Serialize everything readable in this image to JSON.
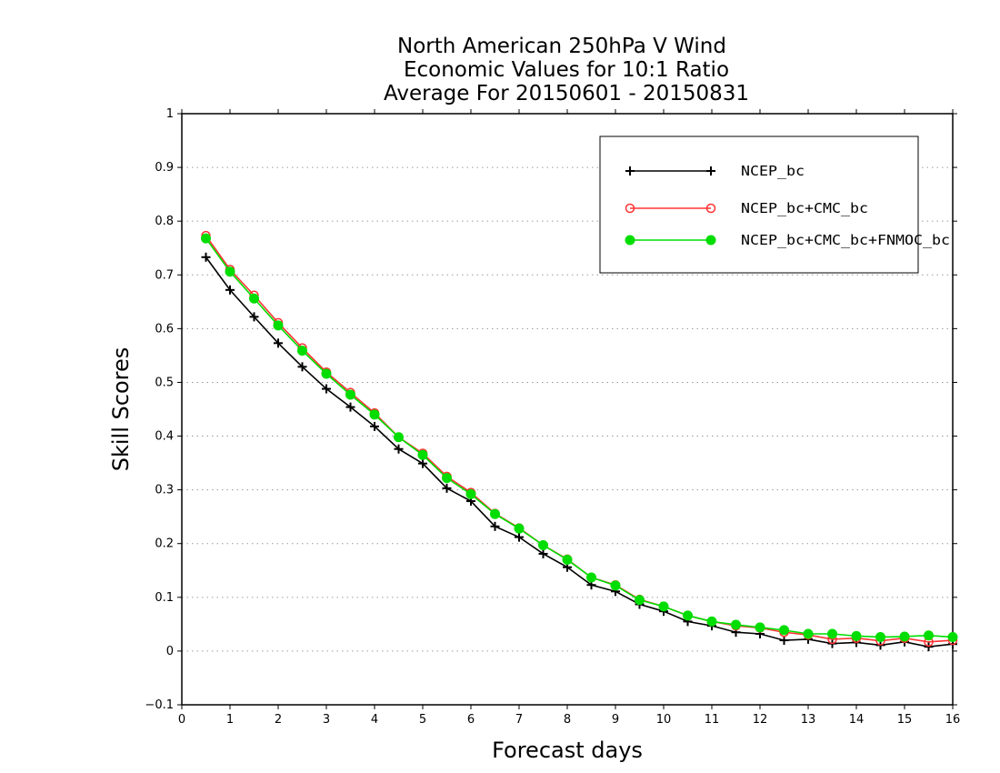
{
  "chart_data": {
    "type": "line",
    "title_lines": [
      "North American 250hPa V Wind",
      "Economic Values for 10:1 Ratio",
      "Average For 20150601 - 20150831"
    ],
    "xlabel": "Forecast days",
    "ylabel": "Skill Scores",
    "xlim": [
      0,
      16
    ],
    "ylim": [
      -0.1,
      1
    ],
    "xticks": [
      "0",
      "1",
      "2",
      "3",
      "4",
      "5",
      "6",
      "7",
      "8",
      "9",
      "10",
      "11",
      "12",
      "13",
      "14",
      "15",
      "16"
    ],
    "yticks": [
      "−0.1",
      "0",
      "0.1",
      "0.2",
      "0.3",
      "0.4",
      "0.5",
      "0.6",
      "0.7",
      "0.8",
      "0.9",
      "1"
    ],
    "grid": "horizontal dotted",
    "legend_position": "top-right",
    "x": [
      0.5,
      1,
      1.5,
      2,
      2.5,
      3,
      3.5,
      4,
      4.5,
      5,
      5.5,
      6,
      6.5,
      7,
      7.5,
      8,
      8.5,
      9,
      9.5,
      10,
      10.5,
      11,
      11.5,
      12,
      12.5,
      13,
      13.5,
      14,
      14.5,
      15,
      15.5,
      16
    ],
    "series": [
      {
        "name": "NCEP_bc",
        "color": "#000000",
        "marker": "plus",
        "values": [
          0.733,
          0.672,
          0.622,
          0.573,
          0.529,
          0.488,
          0.454,
          0.418,
          0.376,
          0.349,
          0.303,
          0.279,
          0.232,
          0.212,
          0.181,
          0.156,
          0.123,
          0.111,
          0.087,
          0.074,
          0.055,
          0.047,
          0.035,
          0.032,
          0.02,
          0.022,
          0.014,
          0.016,
          0.011,
          0.017,
          0.008,
          0.013
        ]
      },
      {
        "name": "NCEP_bc+CMC_bc",
        "color": "#ff3333",
        "marker": "open-circle",
        "values": [
          0.773,
          0.71,
          0.662,
          0.611,
          0.564,
          0.519,
          0.481,
          0.443,
          0.398,
          0.368,
          0.325,
          0.295,
          0.256,
          0.229,
          0.197,
          0.171,
          0.137,
          0.123,
          0.096,
          0.083,
          0.066,
          0.055,
          0.047,
          0.043,
          0.035,
          0.03,
          0.022,
          0.024,
          0.019,
          0.024,
          0.017,
          0.02
        ]
      },
      {
        "name": "NCEP_bc+CMC_bc+FNMOC_bc",
        "color": "#00dd00",
        "marker": "filled-circle",
        "values": [
          0.768,
          0.706,
          0.656,
          0.606,
          0.559,
          0.516,
          0.477,
          0.44,
          0.398,
          0.365,
          0.322,
          0.292,
          0.255,
          0.228,
          0.197,
          0.17,
          0.137,
          0.122,
          0.095,
          0.083,
          0.066,
          0.055,
          0.049,
          0.044,
          0.039,
          0.032,
          0.032,
          0.028,
          0.026,
          0.027,
          0.029,
          0.026
        ]
      }
    ]
  }
}
